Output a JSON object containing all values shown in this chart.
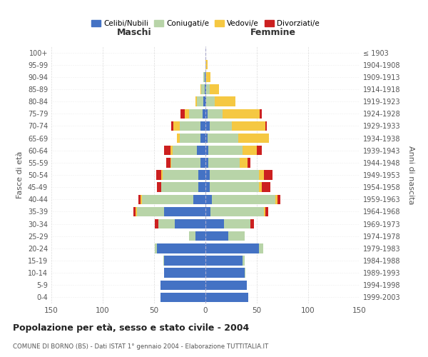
{
  "age_groups": [
    "100+",
    "95-99",
    "90-94",
    "85-89",
    "80-84",
    "75-79",
    "70-74",
    "65-69",
    "60-64",
    "55-59",
    "50-54",
    "45-49",
    "40-44",
    "35-39",
    "30-34",
    "25-29",
    "20-24",
    "15-19",
    "10-14",
    "5-9",
    "0-4"
  ],
  "birth_years": [
    "≤ 1903",
    "1904-1908",
    "1909-1913",
    "1914-1918",
    "1919-1923",
    "1924-1928",
    "1929-1933",
    "1934-1938",
    "1939-1943",
    "1944-1948",
    "1949-1953",
    "1954-1958",
    "1959-1963",
    "1964-1968",
    "1969-1973",
    "1974-1978",
    "1979-1983",
    "1984-1988",
    "1989-1993",
    "1994-1998",
    "1999-2003"
  ],
  "males": {
    "celibi": [
      0,
      0,
      1,
      1,
      2,
      3,
      5,
      5,
      8,
      5,
      7,
      7,
      12,
      40,
      30,
      10,
      47,
      40,
      40,
      44,
      44
    ],
    "coniugati": [
      0,
      0,
      1,
      3,
      6,
      13,
      20,
      20,
      24,
      28,
      35,
      36,
      50,
      27,
      16,
      6,
      2,
      1,
      0,
      0,
      0
    ],
    "vedovi": [
      0,
      0,
      0,
      1,
      2,
      4,
      6,
      3,
      2,
      1,
      1,
      0,
      1,
      1,
      0,
      0,
      0,
      0,
      0,
      0,
      0
    ],
    "divorziati": [
      0,
      0,
      0,
      0,
      0,
      4,
      2,
      0,
      6,
      4,
      5,
      4,
      2,
      2,
      3,
      0,
      0,
      0,
      0,
      0,
      0
    ]
  },
  "females": {
    "nubili": [
      0,
      0,
      0,
      1,
      1,
      2,
      4,
      2,
      3,
      3,
      4,
      4,
      6,
      5,
      18,
      22,
      52,
      36,
      38,
      40,
      42
    ],
    "coniugate": [
      0,
      0,
      1,
      3,
      8,
      15,
      22,
      30,
      33,
      30,
      48,
      48,
      62,
      52,
      26,
      16,
      4,
      2,
      1,
      0,
      0
    ],
    "vedove": [
      0,
      2,
      4,
      9,
      20,
      36,
      32,
      30,
      14,
      8,
      5,
      3,
      2,
      1,
      0,
      0,
      0,
      0,
      0,
      0,
      0
    ],
    "divorziate": [
      0,
      0,
      0,
      0,
      0,
      2,
      2,
      0,
      5,
      3,
      8,
      8,
      3,
      3,
      3,
      0,
      0,
      0,
      0,
      0,
      0
    ]
  },
  "colors": {
    "celibi_nubili": "#4472C4",
    "coniugati": "#B8D4A8",
    "vedovi": "#F5C842",
    "divorziati": "#CC2020"
  },
  "title": "Popolazione per età, sesso e stato civile - 2004",
  "subtitle": "COMUNE DI BORNO (BS) - Dati ISTAT 1° gennaio 2004 - Elaborazione TUTTITALIA.IT",
  "label_maschi": "Maschi",
  "label_femmine": "Femmine",
  "ylabel_left": "Fasce di età",
  "ylabel_right": "Anni di nascita",
  "xlim": 150,
  "legend_labels": [
    "Celibi/Nubili",
    "Coniugati/e",
    "Vedovi/e",
    "Divorziati/e"
  ],
  "background_color": "#ffffff",
  "grid_color": "#cccccc"
}
